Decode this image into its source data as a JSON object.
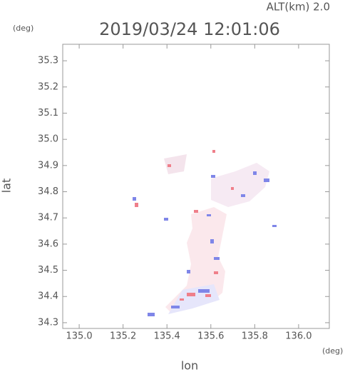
{
  "chart_data": {
    "type": "radar-map",
    "title": "2019/03/24 12:01:06",
    "subtitle": "ALT(km) 2.0",
    "xlabel": "lon",
    "ylabel": "lat",
    "xunit": "(deg)",
    "yunit": "(deg)",
    "xlim": [
      134.925,
      136.14
    ],
    "ylim": [
      34.278,
      35.363
    ],
    "xticks": [
      {
        "value": 135,
        "label": "135.0"
      },
      135.2,
      135.4,
      135.6,
      135.8,
      {
        "value": 136,
        "label": "136.0"
      }
    ],
    "yticks": [
      34.3,
      34.4,
      34.5,
      34.6,
      34.7,
      34.8,
      34.9,
      {
        "value": 35,
        "label": "35.0"
      },
      35.1,
      35.2,
      35.3
    ]
  }
}
